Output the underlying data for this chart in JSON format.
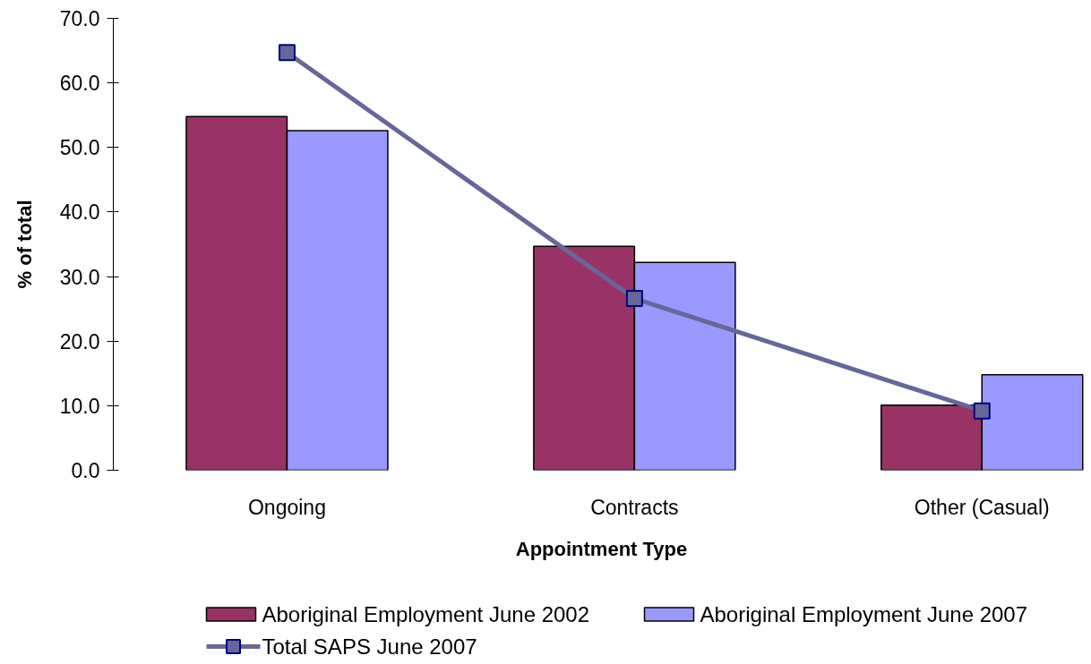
{
  "chart_data": {
    "type": "bar",
    "xlabel": "Appointment Type",
    "ylabel": "% of total",
    "categories": [
      "Ongoing",
      "Contracts",
      "Other (Casual)"
    ],
    "series": [
      {
        "name": "Aboriginal Employment June 2002",
        "color": "#993366",
        "values": [
          54.8,
          34.7,
          10.1
        ]
      },
      {
        "name": "Aboriginal Employment June 2007",
        "color": "#9999ff",
        "values": [
          52.6,
          32.2,
          14.8
        ]
      },
      {
        "name": "Total SAPS June 2007",
        "type": "line",
        "color": "#666699",
        "values": [
          64.7,
          26.6,
          9.2
        ]
      }
    ],
    "ylim": [
      0,
      70
    ],
    "yticks": [
      {
        "value": 0,
        "label": "0.0"
      },
      {
        "value": 10,
        "label": "10.0"
      },
      {
        "value": 20,
        "label": "20.0"
      },
      {
        "value": 30,
        "label": "30.0"
      },
      {
        "value": 40,
        "label": "40.0"
      },
      {
        "value": 50,
        "label": "50.0"
      },
      {
        "value": 60,
        "label": "60.0"
      },
      {
        "value": 70,
        "label": "70.0"
      }
    ],
    "marker": "square",
    "legend": "bottom"
  }
}
